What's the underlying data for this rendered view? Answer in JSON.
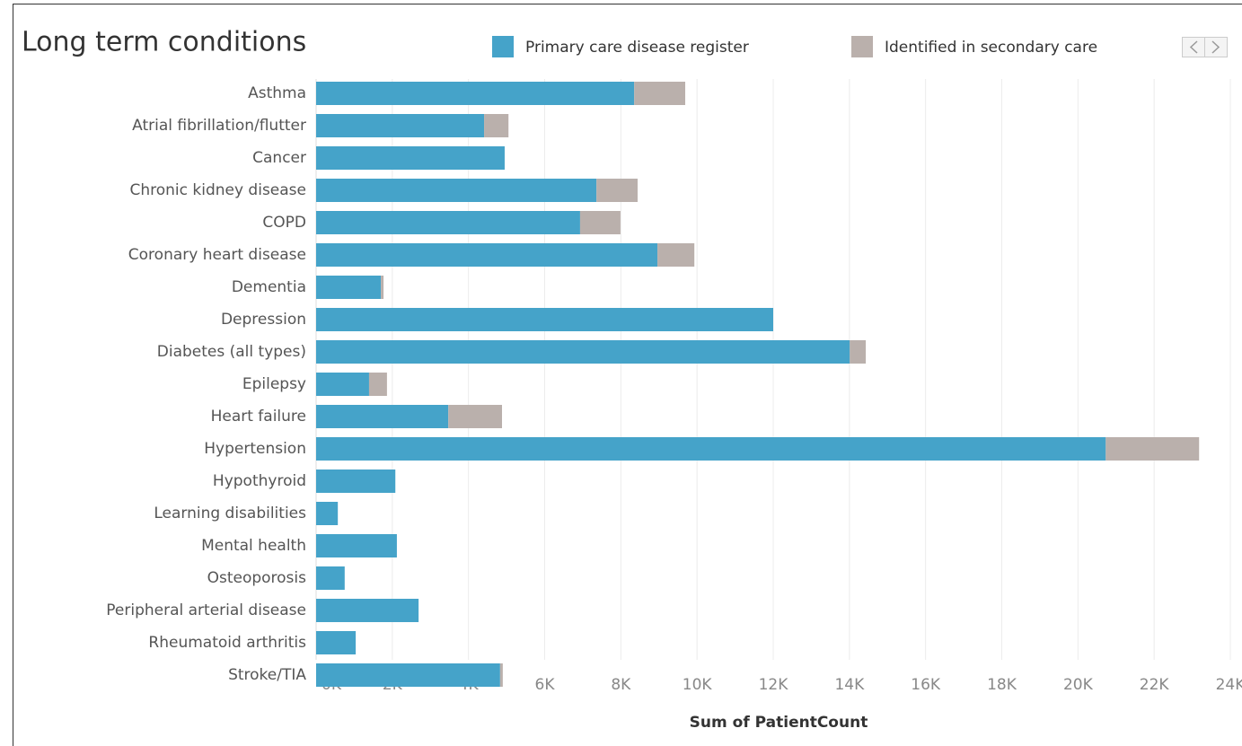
{
  "chart_data": {
    "type": "stacked-bar-horizontal",
    "title": "Long term conditions",
    "x_label": "Sum of PatientCount",
    "categories": [
      "Asthma",
      "Atrial fibrillation/flutter",
      "Cancer",
      "Chronic kidney disease",
      "COPD",
      "Coronary heart disease",
      "Dementia",
      "Depression",
      "Diabetes (all types)",
      "Epilepsy",
      "Heart failure",
      "Hypertension",
      "Hypothyroid",
      "Learning disabilities",
      "Mental health",
      "Osteoporosis",
      "Peripheral arterial disease",
      "Rheumatoid arthritis",
      "Stroke/TIA"
    ],
    "series": [
      {
        "name": "Primary care disease register",
        "color": "#45a3c9",
        "values": [
          8350,
          4410,
          4950,
          7360,
          6930,
          8960,
          1700,
          12000,
          14010,
          1390,
          3470,
          20730,
          2080,
          570,
          2120,
          750,
          2690,
          1040,
          4830
        ]
      },
      {
        "name": "Identified in secondary care",
        "color": "#bab0ac",
        "values": [
          1340,
          640,
          0,
          1080,
          1060,
          970,
          70,
          0,
          420,
          470,
          1410,
          2450,
          0,
          0,
          0,
          0,
          0,
          0,
          70
        ]
      }
    ],
    "xlim": [
      0,
      24000
    ],
    "xticks": [
      {
        "value": 0,
        "label": "0K"
      },
      {
        "value": 2000,
        "label": "2K"
      },
      {
        "value": 4000,
        "label": "4K"
      },
      {
        "value": 6000,
        "label": "6K"
      },
      {
        "value": 8000,
        "label": "8K"
      },
      {
        "value": 10000,
        "label": "10K"
      },
      {
        "value": 12000,
        "label": "12K"
      },
      {
        "value": 14000,
        "label": "14K"
      },
      {
        "value": 16000,
        "label": "16K"
      },
      {
        "value": 18000,
        "label": "18K"
      },
      {
        "value": 20000,
        "label": "20K"
      },
      {
        "value": 22000,
        "label": "22K"
      },
      {
        "value": 24000,
        "label": "24K"
      }
    ],
    "grid": true
  }
}
